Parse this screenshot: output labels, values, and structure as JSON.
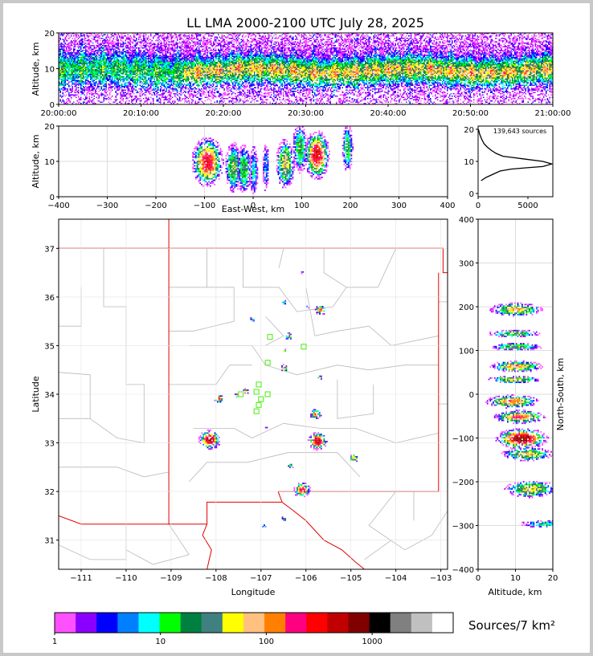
{
  "title": "LL LMA 2000-2100 UTC July 28, 2025",
  "colorbar": {
    "label": "Sources/7 km²",
    "ticks": [
      "1",
      "10",
      "100",
      "1000"
    ],
    "colors": [
      "#ff50ff",
      "#8a00ff",
      "#0000ff",
      "#0080ff",
      "#00ffff",
      "#00ff00",
      "#008040",
      "#408080",
      "#ffff00",
      "#ffc080",
      "#ff8000",
      "#ff0080",
      "#ff0000",
      "#c00000",
      "#800000",
      "#000000",
      "#808080",
      "#c0c0c0",
      "#ffffff"
    ]
  },
  "chart_data": [
    {
      "id": "time-height",
      "type": "heatmap",
      "ylabel": "Altitude, km",
      "xlim": [
        "20:00:00",
        "21:00:00"
      ],
      "ylim": [
        0,
        20
      ],
      "x_ticks": [
        "20:00:00",
        "20:10:00",
        "20:20:00",
        "20:30:00",
        "20:40:00",
        "20:50:00",
        "21:00:00"
      ],
      "y_ticks": [
        0,
        10,
        20
      ],
      "core_altitude_km": 9.5,
      "grid": true
    },
    {
      "id": "ew-height",
      "type": "heatmap",
      "xlabel": "East-West, km",
      "ylabel": "Altitude, km",
      "xlim": [
        -400,
        400
      ],
      "ylim": [
        0,
        20
      ],
      "x_ticks": [
        -400,
        -300,
        -200,
        -100,
        0,
        100,
        200,
        300,
        400
      ],
      "y_ticks": [
        0,
        10,
        20
      ],
      "clusters": [
        {
          "x": -95,
          "width": 30,
          "z": 10,
          "intensity": 0.9
        },
        {
          "x": -42,
          "width": 16,
          "z": 8.5,
          "intensity": 0.55
        },
        {
          "x": -20,
          "width": 14,
          "z": 8,
          "intensity": 0.5
        },
        {
          "x": 0,
          "width": 8,
          "z": 7.5,
          "intensity": 0.35
        },
        {
          "x": 25,
          "width": 6,
          "z": 8.5,
          "intensity": 0.3
        },
        {
          "x": 65,
          "width": 18,
          "z": 9.5,
          "intensity": 0.65
        },
        {
          "x": 95,
          "width": 14,
          "z": 14,
          "intensity": 0.5
        },
        {
          "x": 130,
          "width": 24,
          "z": 12,
          "intensity": 0.95
        },
        {
          "x": 193,
          "width": 10,
          "z": 14,
          "intensity": 0.45
        }
      ],
      "grid": true
    },
    {
      "id": "altitude-histogram",
      "type": "line",
      "annotation": "139,643 sources",
      "xlim": [
        0,
        7500
      ],
      "ylim": [
        -1,
        21
      ],
      "x_ticks": [
        0,
        5000
      ],
      "y_ticks": [
        0,
        10,
        20
      ],
      "series": [
        {
          "x": [
            300,
            800,
            1500,
            2200,
            3300,
            4800,
            6500,
            7400,
            6500,
            4500,
            2500,
            1800,
            1300,
            900,
            600,
            350,
            150,
            30
          ],
          "y": [
            4,
            5,
            6,
            7,
            7.6,
            8,
            8.4,
            9.2,
            10,
            10.8,
            11.6,
            12.5,
            13.5,
            14.5,
            15.5,
            17,
            18.5,
            20
          ]
        }
      ],
      "grid": false
    },
    {
      "id": "plan-view",
      "type": "heatmap",
      "xlabel": "Longitude",
      "ylabel": "Latitude",
      "xlim": [
        -111.5,
        -102.85
      ],
      "ylim": [
        30.4,
        37.6
      ],
      "x_ticks": [
        -111,
        -110,
        -109,
        -108,
        -107,
        -106,
        -105,
        -104,
        -103
      ],
      "y_ticks": [
        31,
        32,
        33,
        34,
        35,
        36,
        37
      ],
      "clusters": [
        {
          "lon": -108.15,
          "lat": 33.08,
          "size": 0.22,
          "intensity": 0.95
        },
        {
          "lon": -107.95,
          "lat": 33.92,
          "size": 0.09,
          "intensity": 0.75
        },
        {
          "lon": -107.55,
          "lat": 33.98,
          "size": 0.05,
          "intensity": 0.55
        },
        {
          "lon": -107.35,
          "lat": 34.08,
          "size": 0.06,
          "intensity": 0.6
        },
        {
          "lon": -106.5,
          "lat": 34.55,
          "size": 0.08,
          "intensity": 0.7
        },
        {
          "lon": -106.4,
          "lat": 35.2,
          "size": 0.08,
          "intensity": 0.55
        },
        {
          "lon": -106.5,
          "lat": 34.9,
          "size": 0.05,
          "intensity": 0.5
        },
        {
          "lon": -106.5,
          "lat": 35.9,
          "size": 0.05,
          "intensity": 0.5
        },
        {
          "lon": -105.7,
          "lat": 35.75,
          "size": 0.12,
          "intensity": 0.75
        },
        {
          "lon": -107.2,
          "lat": 35.55,
          "size": 0.05,
          "intensity": 0.45
        },
        {
          "lon": -105.75,
          "lat": 33.05,
          "size": 0.2,
          "intensity": 0.95
        },
        {
          "lon": -105.8,
          "lat": 33.6,
          "size": 0.12,
          "intensity": 0.7
        },
        {
          "lon": -105.7,
          "lat": 34.35,
          "size": 0.05,
          "intensity": 0.55
        },
        {
          "lon": -106.1,
          "lat": 32.05,
          "size": 0.17,
          "intensity": 0.85
        },
        {
          "lon": -106.35,
          "lat": 32.55,
          "size": 0.06,
          "intensity": 0.5
        },
        {
          "lon": -104.95,
          "lat": 32.7,
          "size": 0.09,
          "intensity": 0.7
        },
        {
          "lon": -106.5,
          "lat": 31.45,
          "size": 0.05,
          "intensity": 0.45
        },
        {
          "lon": -106.95,
          "lat": 31.3,
          "size": 0.04,
          "intensity": 0.35
        },
        {
          "lon": -106.1,
          "lat": 36.52,
          "size": 0.03,
          "intensity": 0.35
        },
        {
          "lon": -106.9,
          "lat": 33.35,
          "size": 0.03,
          "intensity": 0.3
        },
        {
          "lon": -106.0,
          "lat": 35.8,
          "size": 0.04,
          "intensity": 0.45
        }
      ],
      "stations": [
        [
          -106.8,
          35.18
        ],
        [
          -106.05,
          34.98
        ],
        [
          -106.85,
          34.65
        ],
        [
          -107.05,
          34.2
        ],
        [
          -106.85,
          34.0
        ],
        [
          -107.1,
          34.05
        ],
        [
          -107.0,
          33.9
        ],
        [
          -107.05,
          33.78
        ],
        [
          -107.1,
          33.65
        ],
        [
          -107.45,
          34.0
        ]
      ],
      "grid": true
    },
    {
      "id": "ns-height",
      "type": "heatmap",
      "xlabel": "Altitude, km",
      "ylabel": "North-South, km",
      "xlim": [
        0,
        20
      ],
      "ylim": [
        -400,
        400
      ],
      "x_ticks": [
        0,
        10,
        20
      ],
      "y_ticks": [
        -400,
        -300,
        -200,
        -100,
        0,
        100,
        200,
        300,
        400
      ],
      "clusters": [
        {
          "y": 195,
          "height": 14,
          "alt": 10,
          "intensity": 0.65
        },
        {
          "y": 140,
          "height": 8,
          "alt": 9.5,
          "intensity": 0.5
        },
        {
          "y": 110,
          "height": 8,
          "alt": 10,
          "intensity": 0.5
        },
        {
          "y": 65,
          "height": 12,
          "alt": 10,
          "intensity": 0.7
        },
        {
          "y": 35,
          "height": 8,
          "alt": 9.5,
          "intensity": 0.6
        },
        {
          "y": -15,
          "height": 14,
          "alt": 9,
          "intensity": 0.75
        },
        {
          "y": -50,
          "height": 14,
          "alt": 11,
          "intensity": 0.75
        },
        {
          "y": -100,
          "height": 22,
          "alt": 11.5,
          "intensity": 1.0
        },
        {
          "y": -135,
          "height": 14,
          "alt": 13,
          "intensity": 0.6
        },
        {
          "y": -215,
          "height": 18,
          "alt": 14,
          "intensity": 0.6
        },
        {
          "y": -295,
          "height": 8,
          "alt": 18,
          "intensity": 0.35
        }
      ],
      "grid": true
    }
  ]
}
